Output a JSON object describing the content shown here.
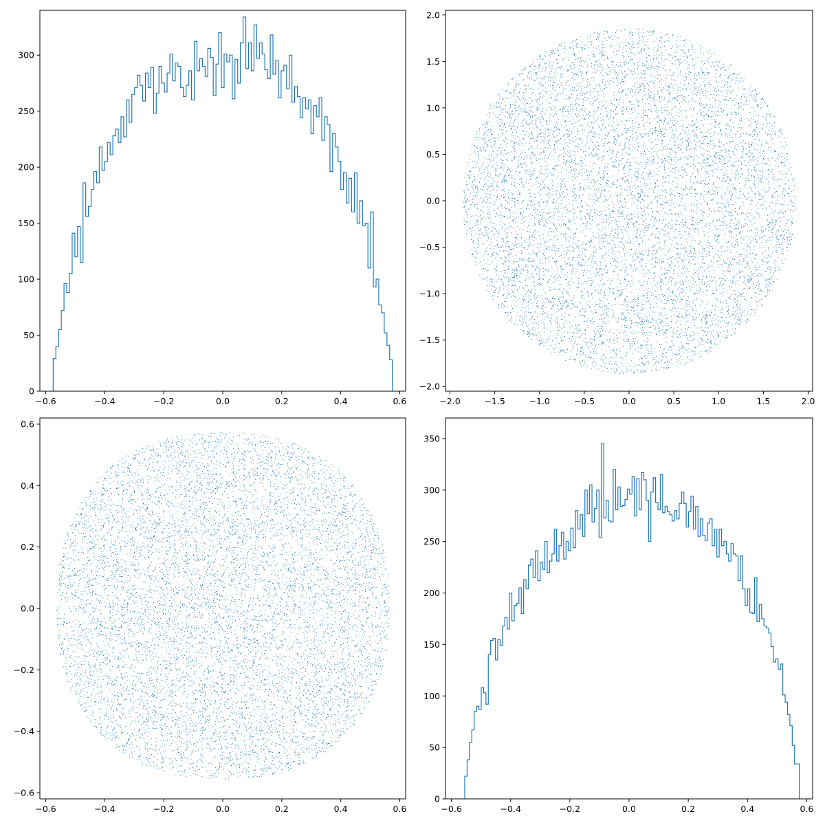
{
  "chart_data": [
    {
      "type": "histogram",
      "title": "",
      "xlabel": "",
      "ylabel": "",
      "xlim": [
        -0.62,
        0.62
      ],
      "ylim": [
        0,
        340
      ],
      "xticks": [
        -0.6,
        -0.4,
        -0.2,
        0.0,
        0.2,
        0.4,
        0.6
      ],
      "xtick_labels": [
        "−0.6",
        "−0.4",
        "−0.2",
        "0.0",
        "0.2",
        "0.4",
        "0.6"
      ],
      "yticks": [
        0,
        50,
        100,
        150,
        200,
        250,
        300
      ],
      "ytick_labels": [
        "0",
        "50",
        "100",
        "150",
        "200",
        "250",
        "300"
      ],
      "color": "#1f77b4",
      "histtype": "step",
      "bin_range": [
        -0.575,
        0.575
      ],
      "counts": [
        29,
        40,
        55,
        72,
        96,
        88,
        105,
        141,
        120,
        147,
        115,
        186,
        156,
        165,
        180,
        196,
        186,
        218,
        197,
        205,
        222,
        211,
        228,
        234,
        222,
        245,
        227,
        260,
        240,
        265,
        271,
        282,
        273,
        259,
        284,
        271,
        289,
        248,
        266,
        290,
        275,
        267,
        284,
        301,
        277,
        293,
        290,
        271,
        263,
        273,
        286,
        260,
        312,
        286,
        297,
        290,
        281,
        306,
        298,
        264,
        292,
        320,
        271,
        301,
        294,
        300,
        261,
        296,
        275,
        311,
        334,
        288,
        311,
        286,
        327,
        297,
        311,
        301,
        287,
        279,
        318,
        283,
        295,
        262,
        286,
        291,
        270,
        300,
        258,
        272,
        263,
        244,
        262,
        252,
        260,
        230,
        255,
        245,
        262,
        224,
        245,
        238,
        196,
        230,
        218,
        205,
        180,
        195,
        168,
        190,
        160,
        195,
        150,
        170,
        148,
        150,
        110,
        160,
        93,
        100,
        77,
        70,
        52,
        41,
        28
      ]
    },
    {
      "type": "scatter",
      "title": "",
      "xlabel": "",
      "ylabel": "",
      "xlim": [
        -2.05,
        2.05
      ],
      "ylim": [
        -2.05,
        2.05
      ],
      "xticks": [
        -2.0,
        -1.5,
        -1.0,
        -0.5,
        0.0,
        0.5,
        1.0,
        1.5,
        2.0
      ],
      "xtick_labels": [
        "−2.0",
        "−1.5",
        "−1.0",
        "−0.5",
        "0.0",
        "0.5",
        "1.0",
        "1.5",
        "2.0"
      ],
      "yticks": [
        -2.0,
        -1.5,
        -1.0,
        -0.5,
        0.0,
        0.5,
        1.0,
        1.5,
        2.0
      ],
      "ytick_labels": [
        "−2.0",
        "−1.5",
        "−1.0",
        "−0.5",
        "0.0",
        "0.5",
        "1.0",
        "1.5",
        "2.0"
      ],
      "color": "#1f77b4",
      "marker": "pixel",
      "point_count": 10000,
      "distribution": "uniform disk",
      "center": [
        0.0,
        0.0
      ],
      "radius": 1.86,
      "seed": 7
    },
    {
      "type": "scatter",
      "title": "",
      "xlabel": "",
      "ylabel": "",
      "xlim": [
        -0.62,
        0.62
      ],
      "ylim": [
        -0.62,
        0.62
      ],
      "xticks": [
        -0.6,
        -0.4,
        -0.2,
        0.0,
        0.2,
        0.4,
        0.6
      ],
      "xtick_labels": [
        "−0.6",
        "−0.4",
        "−0.2",
        "0.0",
        "0.2",
        "0.4",
        "0.6"
      ],
      "yticks": [
        -0.6,
        -0.4,
        -0.2,
        0.0,
        0.2,
        0.4,
        0.6
      ],
      "ytick_labels": [
        "−0.6",
        "−0.4",
        "−0.2",
        "0.0",
        "0.2",
        "0.4",
        "0.6"
      ],
      "color": "#1f77b4",
      "marker": "pixel",
      "point_count": 10000,
      "distribution": "uniform squircle",
      "center": [
        0.0,
        0.01
      ],
      "radius": 0.565,
      "shape_exponent": 2.3,
      "seed": 11
    },
    {
      "type": "histogram",
      "title": "",
      "xlabel": "",
      "ylabel": "",
      "xlim": [
        -0.62,
        0.62
      ],
      "ylim": [
        0,
        370
      ],
      "xticks": [
        -0.6,
        -0.4,
        -0.2,
        0.0,
        0.2,
        0.4,
        0.6
      ],
      "xtick_labels": [
        "−0.6",
        "−0.4",
        "−0.2",
        "0.0",
        "0.2",
        "0.4",
        "0.6"
      ],
      "yticks": [
        0,
        50,
        100,
        150,
        200,
        250,
        300,
        350
      ],
      "ytick_labels": [
        "0",
        "50",
        "100",
        "150",
        "200",
        "250",
        "300",
        "350"
      ],
      "color": "#1f77b4",
      "histtype": "step",
      "bin_range": [
        -0.555,
        0.575
      ],
      "counts": [
        22,
        38,
        55,
        67,
        85,
        90,
        87,
        108,
        103,
        92,
        140,
        154,
        156,
        135,
        155,
        149,
        168,
        176,
        165,
        200,
        173,
        188,
        190,
        205,
        180,
        213,
        204,
        227,
        233,
        215,
        241,
        212,
        230,
        223,
        250,
        220,
        231,
        238,
        262,
        231,
        246,
        259,
        233,
        250,
        241,
        263,
        244,
        280,
        262,
        276,
        255,
        300,
        277,
        305,
        269,
        282,
        300,
        254,
        345,
        273,
        290,
        270,
        269,
        320,
        281,
        303,
        284,
        285,
        291,
        301,
        296,
        313,
        275,
        311,
        281,
        317,
        310,
        290,
        250,
        298,
        312,
        288,
        281,
        315,
        278,
        284,
        279,
        276,
        270,
        280,
        272,
        287,
        298,
        287,
        264,
        279,
        294,
        262,
        284,
        255,
        272,
        256,
        251,
        268,
        272,
        246,
        262,
        235,
        262,
        246,
        250,
        238,
        231,
        248,
        238,
        236,
        212,
        236,
        204,
        188,
        204,
        181,
        180,
        215,
        172,
        189,
        175,
        168,
        166,
        161,
        148,
        133,
        136,
        126,
        131,
        101,
        94,
        82,
        71,
        52,
        34,
        34
      ]
    }
  ]
}
